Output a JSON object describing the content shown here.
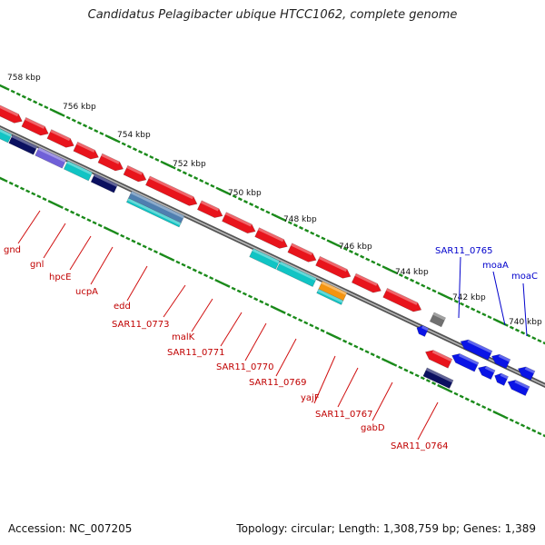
{
  "title": "Candidatus Pelagibacter ubique HTCC1062, complete genome",
  "footer": {
    "accession": "Accession: NC_007205",
    "summary": "Topology: circular; Length: 1,308,759 bp; Genes: 1,389"
  },
  "scale_labels": [
    "758 kbp",
    "756 kbp",
    "754 kbp",
    "752 kbp",
    "750 kbp",
    "748 kbp",
    "746 kbp",
    "744 kbp",
    "742 kbp",
    "740 kbp"
  ],
  "gene_labels_red": [
    "gnd",
    "gnl",
    "hpcE",
    "ucpA",
    "edd",
    "SAR11_0773",
    "malK",
    "SAR11_0771",
    "SAR11_0770",
    "SAR11_0769",
    "yajF",
    "SAR11_0767",
    "gabD",
    "SAR11_0764"
  ],
  "gene_labels_blue": [
    "SAR11_0765",
    "moaA",
    "moaC"
  ],
  "colors": {
    "forward": "#e8141c",
    "cyan": "#11c4c4",
    "navy": "#0b1060",
    "purple": "#7060d8",
    "steel": "#4f7fb0",
    "orange": "#f49410",
    "gray": "#707070",
    "blue": "#0a14e6",
    "scale_dots": "#1a8a1a"
  }
}
